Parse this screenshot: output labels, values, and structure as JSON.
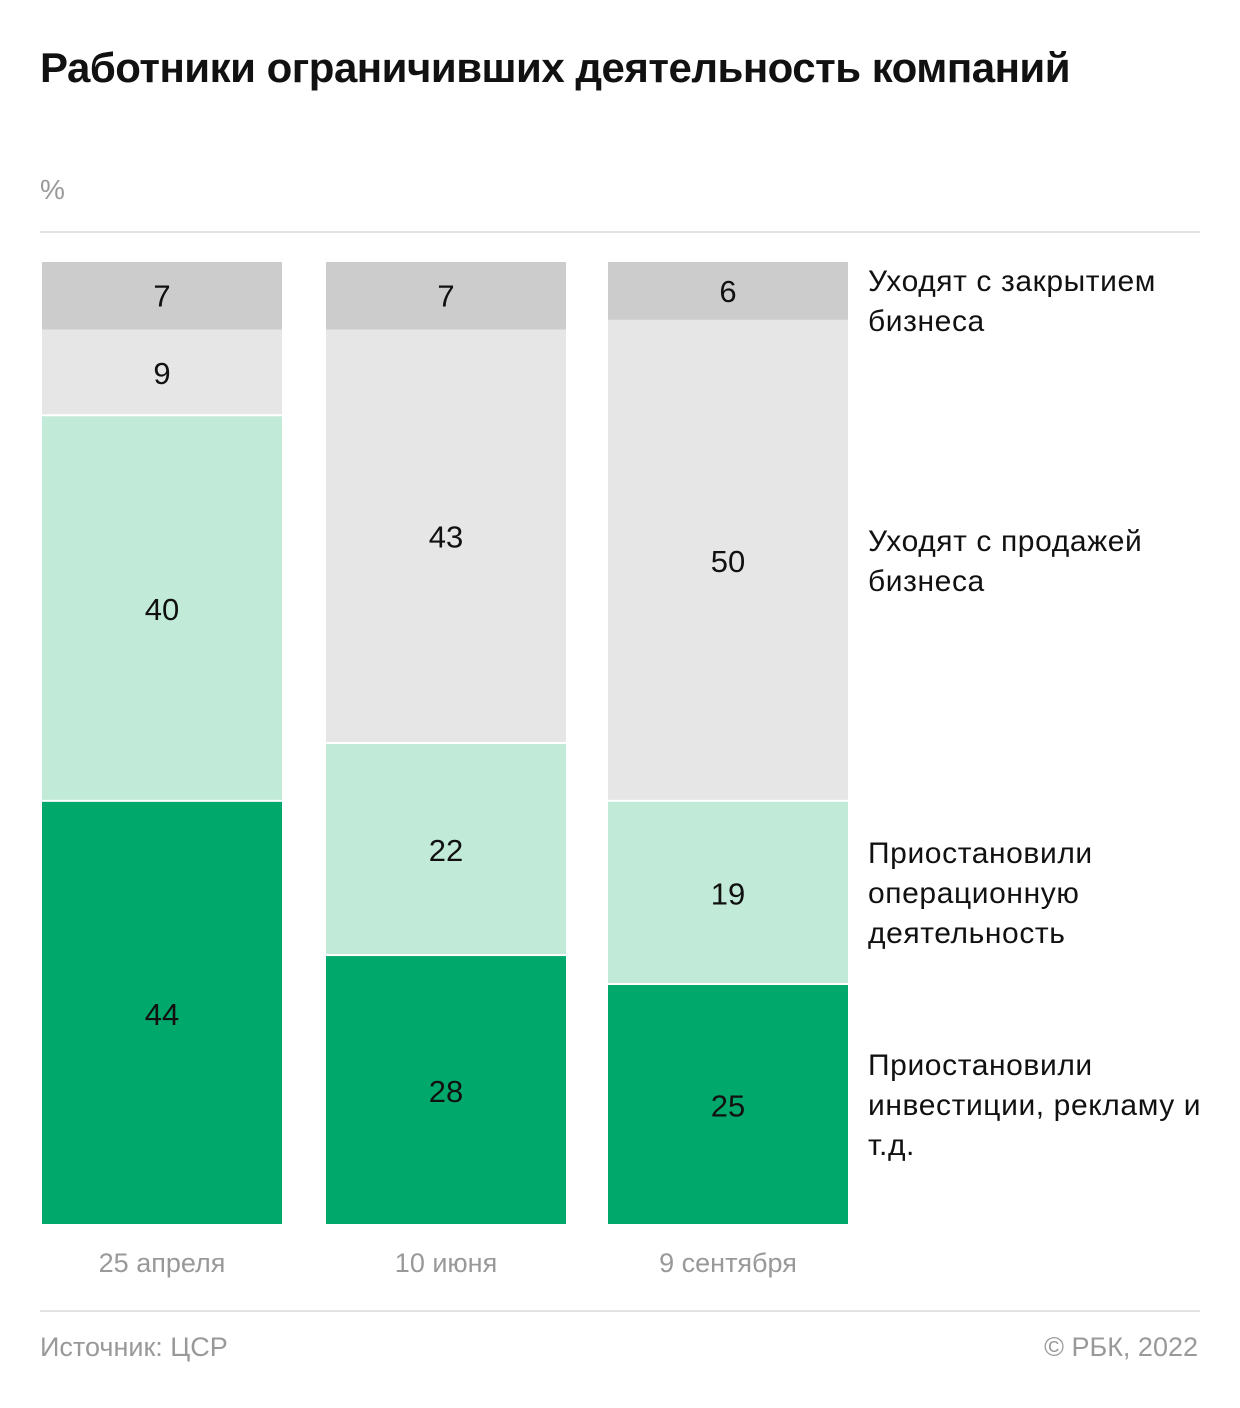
{
  "title": "Работники ограничивших деятельность компаний",
  "unit": "%",
  "source": "Источник: ЦСР",
  "copyright": "© РБК, 2022",
  "colors": {
    "close": "#cccccc",
    "sale": "#e6e6e6",
    "operations": "#c2ead8",
    "investments": "#00a86b",
    "label_text": "#111111",
    "axis_text": "#999999"
  },
  "chart_data": {
    "type": "bar",
    "stacked": true,
    "normalized": true,
    "title": "Работники ограничивших деятельность компаний",
    "ylabel": "%",
    "categories": [
      "25 апреля",
      "10 июня",
      "9 сентября"
    ],
    "series": [
      {
        "name": "Приостановили инвестиции, рекламу и т.д.",
        "color": "#00a86b",
        "values": [
          44,
          28,
          25
        ]
      },
      {
        "name": "Приостановили операционную деятельность",
        "color": "#c2ead8",
        "values": [
          40,
          22,
          19
        ]
      },
      {
        "name": "Уходят с продажей бизнеса",
        "color": "#e6e6e6",
        "values": [
          9,
          43,
          50
        ]
      },
      {
        "name": "Уходят с закрытием бизнеса",
        "color": "#cccccc",
        "values": [
          7,
          7,
          6
        ]
      }
    ],
    "legend": "right"
  }
}
